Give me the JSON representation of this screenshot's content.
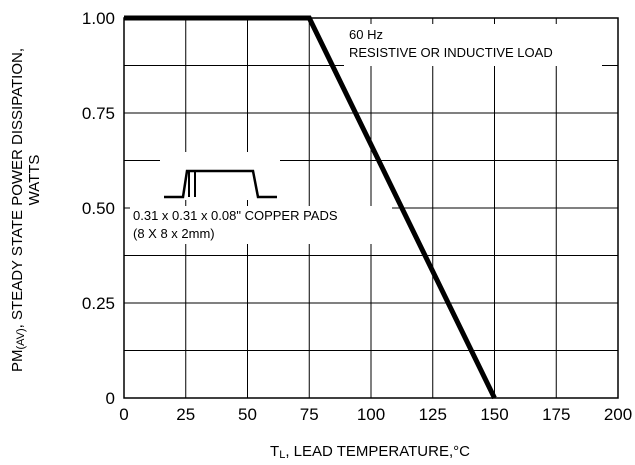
{
  "chart_data": {
    "type": "line",
    "title": "",
    "xlabel": {
      "main": "T",
      "sub": "L",
      "rest": ", LEAD TEMPERATURE,°C"
    },
    "ylabel": {
      "line1_main": "PM",
      "line1_sub": "(AV)",
      "line1_rest": ", STEADY STATE POWER DISSIPATION,",
      "line2": "WATTS"
    },
    "xlim": [
      0,
      200
    ],
    "ylim": [
      0,
      1.0
    ],
    "x_ticks": [
      0,
      25,
      50,
      75,
      100,
      125,
      150,
      175,
      200
    ],
    "x_tick_labels": [
      "0",
      "25",
      "50",
      "75",
      "100",
      "125",
      "150",
      "175",
      "200"
    ],
    "y_ticks": [
      0,
      0.25,
      0.5,
      0.75,
      1.0
    ],
    "y_tick_labels": [
      "0",
      "0.25",
      "0.50",
      "0.75",
      "1.00"
    ],
    "grid": true,
    "series": [
      {
        "x": [
          0,
          75,
          150
        ],
        "y": [
          1.0,
          1.0,
          0
        ]
      }
    ],
    "annotations": {
      "frequency_line1": "60 Hz",
      "frequency_line2": "RESISTIVE OR INDUCTIVE LOAD",
      "pads_line1": "0.31 x 0.31 x 0.08\" COPPER PADS",
      "pads_line2": "(8 X 8 x 2mm)"
    }
  }
}
